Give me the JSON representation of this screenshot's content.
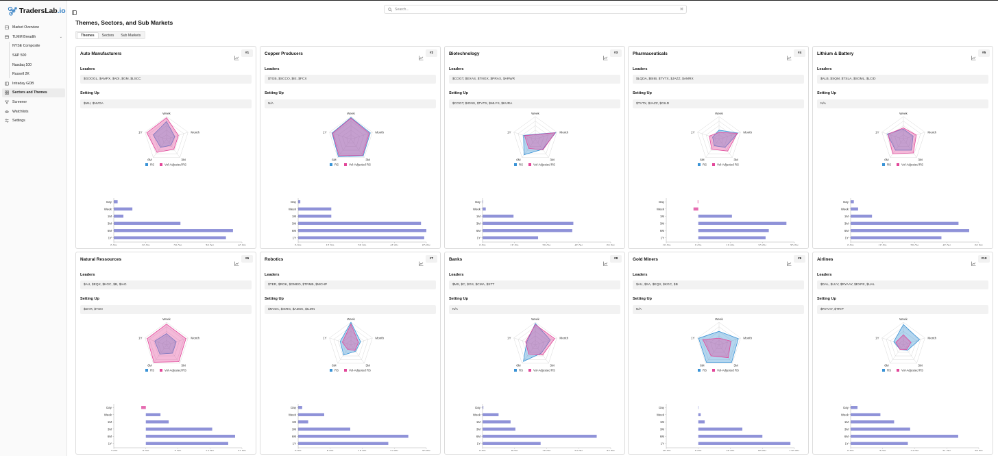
{
  "app": {
    "brand": "TradersLab",
    "brand_tld": ".io"
  },
  "sidebar": {
    "items": [
      {
        "label": "Market Overview",
        "icon": "market-icon"
      },
      {
        "label": "TLMM Breadth",
        "icon": "breadth-icon"
      },
      {
        "label": "Intraday GDB",
        "icon": "intraday-icon"
      },
      {
        "label": "Sectors and Themes",
        "icon": "sectors-icon"
      },
      {
        "label": "Screener",
        "icon": "screener-icon"
      },
      {
        "label": "Watchlists",
        "icon": "watchlist-icon"
      },
      {
        "label": "Settings",
        "icon": "settings-icon"
      }
    ],
    "sub_items": [
      "NYSE Composite",
      "S&P 500",
      "Nasdaq 100",
      "Russell 2K"
    ]
  },
  "search": {
    "placeholder": "Search..."
  },
  "page": {
    "title": "Themes, Sectors, and Sub Markets"
  },
  "tabs": [
    "Themes",
    "Sectors",
    "Sub Markets"
  ],
  "labels": {
    "leaders": "Leaders",
    "setting_up": "Setting Up",
    "legend_rs": "RS",
    "legend_vol": "Vol-Adjusted RS"
  },
  "radar_axes": [
    "Week",
    "Month",
    "3M",
    "6M",
    "1Y"
  ],
  "bar_categories": [
    "Day",
    "Week",
    "1M",
    "3M",
    "6M",
    "1Y"
  ],
  "colors": {
    "rs": "#3a93d6",
    "vol": "#e2479a",
    "bar": "#8f92d8"
  },
  "cards": [
    {
      "title": "Auto Manufacturers",
      "rank": "#1",
      "leaders": "$GOOGL, $AMPX, $ADI, $GM, $LSCC",
      "setting_up": "$MU, $NVDA",
      "chart_data": {
        "type": "radar+bar",
        "radar_rs": [
          0.78,
          0.38,
          0.33,
          0.45,
          0.62
        ],
        "radar_vol": [
          0.95,
          0.55,
          0.55,
          0.72,
          0.92
        ],
        "bars": [
          1.2,
          5.8,
          3.0,
          20.8,
          37.2,
          35.0
        ],
        "ticks": [
          "0.0%",
          "10.0%",
          "20.0%",
          "30.0%",
          "40.0%"
        ],
        "min": 0,
        "max": 40
      }
    },
    {
      "title": "Copper Producers",
      "rank": "#2",
      "leaders": "$TGB, $SCCO, $IE, $FCX",
      "setting_up": "N/A",
      "chart_data": {
        "type": "radar+bar",
        "radar_rs": [
          0.96,
          0.9,
          0.92,
          0.95,
          0.88
        ],
        "radar_vol": [
          0.93,
          0.85,
          0.88,
          0.9,
          0.85
        ],
        "bars": [
          1.0,
          15.5,
          15.5,
          57.5,
          60.0,
          59.0
        ],
        "ticks": [
          "0.0%",
          "15.0%",
          "30.0%",
          "45.0%",
          "60.0%"
        ],
        "min": 0,
        "max": 60
      }
    },
    {
      "title": "Biotechnology",
      "rank": "#3",
      "leaders": "$COGT, $EXAS, $TNGX, $PRAX, $ARWR",
      "setting_up": "$COGT, $IONS, $TVTX, $MLYS, $KURA",
      "chart_data": {
        "type": "radar+bar",
        "radar_rs": [
          0.22,
          0.95,
          0.55,
          0.85,
          0.55
        ],
        "radar_vol": [
          0.2,
          0.92,
          0.58,
          0.5,
          0.5
        ],
        "bars": [
          0.2,
          1.5,
          14.5,
          42.5,
          42.0,
          26.0
        ],
        "ticks": [
          "0.0%",
          "15.0%",
          "30.0%",
          "45.0%",
          "60.0%"
        ],
        "min": 0,
        "max": 60
      }
    },
    {
      "title": "Pharmaceuticals",
      "rank": "#4",
      "leaders": "$LQDA, $BIIB, $TVTX, $JAZZ, $AMRX",
      "setting_up": "$TVTX, $JAZZ, $GILD",
      "chart_data": {
        "type": "radar+bar",
        "radar_rs": [
          0.4,
          0.88,
          0.45,
          0.35,
          0.3
        ],
        "radar_vol": [
          0.3,
          0.85,
          0.65,
          0.55,
          0.45
        ],
        "bars": [
          -0.2,
          -1.5,
          10.5,
          27.5,
          22.0,
          21.0
        ],
        "ticks": [
          "-10.0%",
          "0.0%",
          "10.0%",
          "20.0%",
          "30.0%"
        ],
        "min": -10,
        "max": 30
      }
    },
    {
      "title": "Lithium & Battery",
      "rank": "#5",
      "leaders": "$ALB, $SQM, $TSLA, $SGML, $LCID",
      "setting_up": "N/A",
      "chart_data": {
        "type": "radar+bar",
        "radar_rs": [
          0.45,
          0.45,
          0.6,
          0.6,
          0.75
        ],
        "radar_vol": [
          0.5,
          0.6,
          0.75,
          0.8,
          0.72
        ],
        "bars": [
          1.5,
          3.5,
          10.0,
          50.5,
          55.5,
          42.5
        ],
        "ticks": [
          "0.0%",
          "15.0%",
          "30.0%",
          "45.0%",
          "60.0%"
        ],
        "min": 0,
        "max": 60
      }
    },
    {
      "title": "Natural Ressources",
      "rank": "#6",
      "leaders": "$AU, $EQX, $KGC, $B, $IAG",
      "setting_up": "$DAR, $TSN",
      "chart_data": {
        "type": "radar+bar",
        "radar_rs": [
          0.5,
          0.45,
          0.45,
          0.5,
          0.55
        ],
        "radar_vol": [
          0.92,
          0.9,
          0.92,
          0.95,
          0.9
        ],
        "bars": [
          -1.0,
          3.2,
          5.0,
          14.5,
          19.5,
          18.0
        ],
        "ticks": [
          "-7.0%",
          "0.0%",
          "7.0%",
          "14.0%",
          "21.0%"
        ],
        "min": -7,
        "max": 21
      }
    },
    {
      "title": "Robotics",
      "rank": "#7",
      "leaders": "$TER, $ROK, $GMED, $TRMB, $MCHP",
      "setting_up": "$NVDA, $ISRG, $ADSK, $ILMN",
      "chart_data": {
        "type": "radar+bar",
        "radar_rs": [
          1.0,
          0.45,
          0.35,
          0.55,
          0.5
        ],
        "radar_vol": [
          0.92,
          0.35,
          0.3,
          0.25,
          0.4
        ],
        "bars": [
          1.0,
          6.5,
          2.5,
          13.0,
          27.5,
          22.5
        ],
        "ticks": [
          "0.0%",
          "8.0%",
          "16.0%",
          "24.0%",
          "32.0%"
        ],
        "min": 0,
        "max": 32
      }
    },
    {
      "title": "Banks",
      "rank": "#8",
      "leaders": "$MS, $C, $GS, $CMA, $STT",
      "setting_up": "N/A",
      "chart_data": {
        "type": "radar+bar",
        "radar_rs": [
          0.95,
          0.7,
          0.45,
          0.9,
          0.4
        ],
        "radar_vol": [
          0.9,
          0.9,
          0.55,
          0.5,
          0.45
        ],
        "bars": [
          0.2,
          4.0,
          7.0,
          8.2,
          28.5,
          14.5
        ],
        "ticks": [
          "0.0%",
          "8.0%",
          "16.0%",
          "24.0%",
          "32.0%"
        ],
        "min": 0,
        "max": 32
      }
    },
    {
      "title": "Gold Miners",
      "rank": "#9",
      "leaders": "$AU, $SA, $EQX, $KGC, $B",
      "setting_up": "N/A",
      "chart_data": {
        "type": "radar+bar",
        "radar_rs": [
          0.6,
          0.9,
          0.95,
          0.95,
          0.95
        ],
        "radar_vol": [
          0.3,
          0.55,
          0.7,
          0.6,
          0.75
        ],
        "bars": [
          0.3,
          3.0,
          8.0,
          55.0,
          80.0,
          115.0
        ],
        "ticks": [
          "-40.0%",
          "0.0%",
          "40.0%",
          "80.0%",
          "120.0%"
        ],
        "min": -40,
        "max": 120
      }
    },
    {
      "title": "Airlines",
      "rank": "#10",
      "leaders": "$DAL, $LUV, $RYAAY, $EXPE, $UAL",
      "setting_up": "$RYAAY, $TRIP",
      "chart_data": {
        "type": "radar+bar",
        "radar_rs": [
          0.9,
          0.75,
          0.3,
          0.25,
          0.45
        ],
        "radar_vol": [
          0.45,
          0.35,
          0.25,
          0.25,
          0.35
        ],
        "bars": [
          1.5,
          6.5,
          9.5,
          13.0,
          23.5,
          12.5
        ],
        "ticks": [
          "0.0%",
          "7.0%",
          "14.0%",
          "21.0%",
          "28.0%"
        ],
        "min": 0,
        "max": 28
      }
    }
  ]
}
